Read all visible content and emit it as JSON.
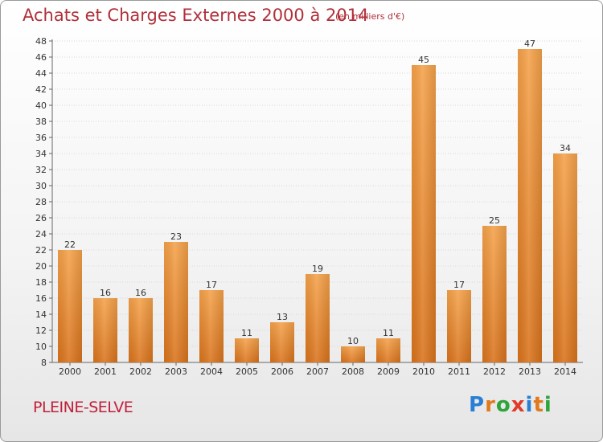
{
  "title": "Achats et Charges Externes 2000 à 2014",
  "subtitle": "(en milliers d'€)",
  "place": "PLEINE-SELVE",
  "logo": {
    "letters": [
      "P",
      "r",
      "o",
      "x",
      "i",
      "t",
      "i"
    ],
    "colors": [
      "#2a7fd4",
      "#e07a1c",
      "#2fa43a",
      "#e03a2a",
      "#2a7fd4",
      "#e07a1c",
      "#2fa43a"
    ]
  },
  "colors": {
    "bar_top": "#f5a24a",
    "bar_bottom": "#d9731c",
    "title": "#b0303a",
    "grid": "#d8d8d8"
  },
  "chart_data": {
    "type": "bar",
    "categories": [
      "2000",
      "2001",
      "2002",
      "2003",
      "2004",
      "2005",
      "2006",
      "2007",
      "2008",
      "2009",
      "2010",
      "2011",
      "2012",
      "2013",
      "2014"
    ],
    "values": [
      22,
      16,
      16,
      23,
      17,
      11,
      13,
      19,
      10,
      11,
      45,
      17,
      25,
      47,
      34
    ],
    "ylim": [
      8,
      48
    ],
    "yticks": [
      8,
      10,
      12,
      14,
      16,
      18,
      20,
      22,
      24,
      26,
      28,
      30,
      32,
      34,
      36,
      38,
      40,
      42,
      44,
      46,
      48
    ],
    "grid": true,
    "data_labels": true
  }
}
